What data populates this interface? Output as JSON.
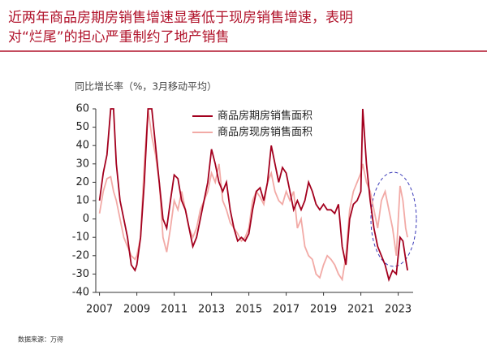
{
  "chart_data": {
    "type": "line",
    "title": "近两年商品房期房销售增速显著低于现房销售增速，表明",
    "subtitle": "对“烂尾”的担心严重制约了地产销售",
    "y_label": "同比增长率（%，3月移动平均）",
    "source": "数据来源：万得",
    "x": [
      2007.0,
      2007.2,
      2007.4,
      2007.6,
      2007.75,
      2007.9,
      2008.1,
      2008.3,
      2008.5,
      2008.7,
      2008.9,
      2009.0,
      2009.2,
      2009.4,
      2009.6,
      2009.8,
      2010.0,
      2010.2,
      2010.4,
      2010.6,
      2010.8,
      2011.0,
      2011.2,
      2011.4,
      2011.6,
      2011.8,
      2012.0,
      2012.2,
      2012.4,
      2012.6,
      2012.8,
      2013.0,
      2013.2,
      2013.4,
      2013.6,
      2013.8,
      2014.0,
      2014.2,
      2014.4,
      2014.6,
      2014.8,
      2015.0,
      2015.2,
      2015.4,
      2015.6,
      2015.8,
      2016.0,
      2016.2,
      2016.4,
      2016.6,
      2016.8,
      2017.0,
      2017.2,
      2017.4,
      2017.6,
      2017.8,
      2018.0,
      2018.2,
      2018.4,
      2018.6,
      2018.8,
      2019.0,
      2019.2,
      2019.4,
      2019.6,
      2019.8,
      2020.0,
      2020.2,
      2020.4,
      2020.6,
      2020.8,
      2021.0,
      2021.1,
      2021.3,
      2021.5,
      2021.7,
      2021.9,
      2022.1,
      2022.3,
      2022.5,
      2022.7,
      2022.9,
      2023.1,
      2023.25,
      2023.4,
      2023.5
    ],
    "series": [
      {
        "name": "商品房期房销售面积",
        "color": "#a3001e",
        "values": [
          10,
          25,
          35,
          60,
          60,
          30,
          10,
          0,
          -10,
          -25,
          -28,
          -25,
          -10,
          20,
          60,
          60,
          40,
          20,
          0,
          -5,
          10,
          24,
          22,
          10,
          5,
          -5,
          -15,
          -10,
          0,
          10,
          20,
          38,
          30,
          20,
          15,
          20,
          5,
          -5,
          -12,
          -10,
          -12,
          -8,
          5,
          15,
          17,
          10,
          20,
          40,
          30,
          20,
          28,
          25,
          15,
          5,
          10,
          5,
          10,
          20,
          15,
          8,
          5,
          8,
          5,
          5,
          3,
          8,
          -15,
          -25,
          0,
          8,
          10,
          15,
          60,
          30,
          10,
          -5,
          -15,
          -20,
          -25,
          -33,
          -28,
          -30,
          -10,
          -12,
          -22,
          -28
        ]
      },
      {
        "name": "商品房现房销售面积",
        "color": "#f2aaa6",
        "values": [
          3,
          15,
          22,
          23,
          15,
          10,
          0,
          -10,
          -15,
          -20,
          -22,
          -20,
          -10,
          30,
          60,
          45,
          35,
          20,
          -10,
          -18,
          -5,
          10,
          5,
          15,
          5,
          -5,
          -10,
          -5,
          5,
          10,
          15,
          25,
          20,
          30,
          10,
          5,
          -2,
          -5,
          -8,
          -12,
          -10,
          -5,
          10,
          15,
          12,
          8,
          20,
          25,
          15,
          10,
          8,
          15,
          10,
          15,
          -5,
          0,
          -15,
          -20,
          -22,
          -30,
          -32,
          -25,
          -20,
          -22,
          -25,
          -30,
          -33,
          -20,
          5,
          15,
          20,
          25,
          30,
          20,
          15,
          5,
          -5,
          10,
          15,
          5,
          -5,
          -20,
          18,
          10,
          -5,
          -10
        ]
      }
    ],
    "xlim": [
      2006.8,
      2023.8
    ],
    "xticks": [
      2007,
      2009,
      2011,
      2013,
      2015,
      2017,
      2019,
      2021,
      2023
    ],
    "ylim": [
      -40,
      60
    ],
    "yticks": [
      -40,
      -30,
      -20,
      -10,
      0,
      10,
      20,
      30,
      40,
      50,
      60
    ],
    "legend": "top-right"
  }
}
